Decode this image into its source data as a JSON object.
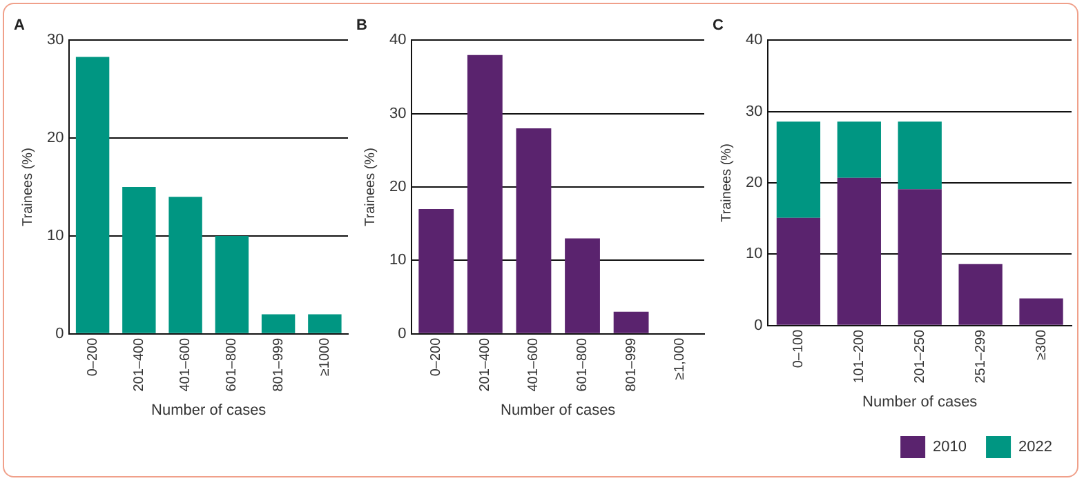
{
  "chart_data": [
    {
      "type": "bar",
      "title": "A",
      "xlabel": "Number of cases",
      "ylabel": "Trainees (%)",
      "categories": [
        "0–200",
        "201–400",
        "401–600",
        "601–800",
        "801–999",
        "≥1000"
      ],
      "series": [
        {
          "color": "#009682",
          "values": [
            28.3,
            15,
            14,
            10,
            2,
            2
          ]
        }
      ],
      "ylim": [
        0,
        30
      ],
      "yticks": [
        0,
        10,
        20,
        30
      ],
      "grid": "y",
      "legend": false
    },
    {
      "type": "bar",
      "title": "B",
      "xlabel": "Number of cases",
      "ylabel": "Trainees (%)",
      "categories": [
        "0–200",
        "201–400",
        "401–600",
        "601–800",
        "801–999",
        "≥1,000"
      ],
      "series": [
        {
          "color": "#5a236e",
          "values": [
            17,
            38,
            28,
            13,
            3,
            0
          ]
        }
      ],
      "ylim": [
        0,
        40
      ],
      "yticks": [
        0,
        10,
        20,
        30,
        40
      ],
      "grid": "y",
      "legend": false
    },
    {
      "type": "bar",
      "title": "C",
      "xlabel": "Number of cases",
      "ylabel": "Trainees (%)",
      "categories": [
        "0–100",
        "101–200",
        "201–250",
        "251–299",
        "≥300"
      ],
      "stacked": true,
      "series": [
        {
          "name": "2010",
          "color": "#5a236e",
          "values": [
            15.1,
            20.7,
            19.1,
            8.6,
            3.8
          ]
        },
        {
          "name": "2022",
          "color": "#009682",
          "values": [
            13.5,
            7.9,
            9.5,
            null,
            null
          ]
        }
      ],
      "ylim": [
        0,
        40
      ],
      "yticks": [
        0,
        10,
        20,
        30,
        40
      ],
      "grid": "y",
      "legend": "bottom right"
    }
  ]
}
